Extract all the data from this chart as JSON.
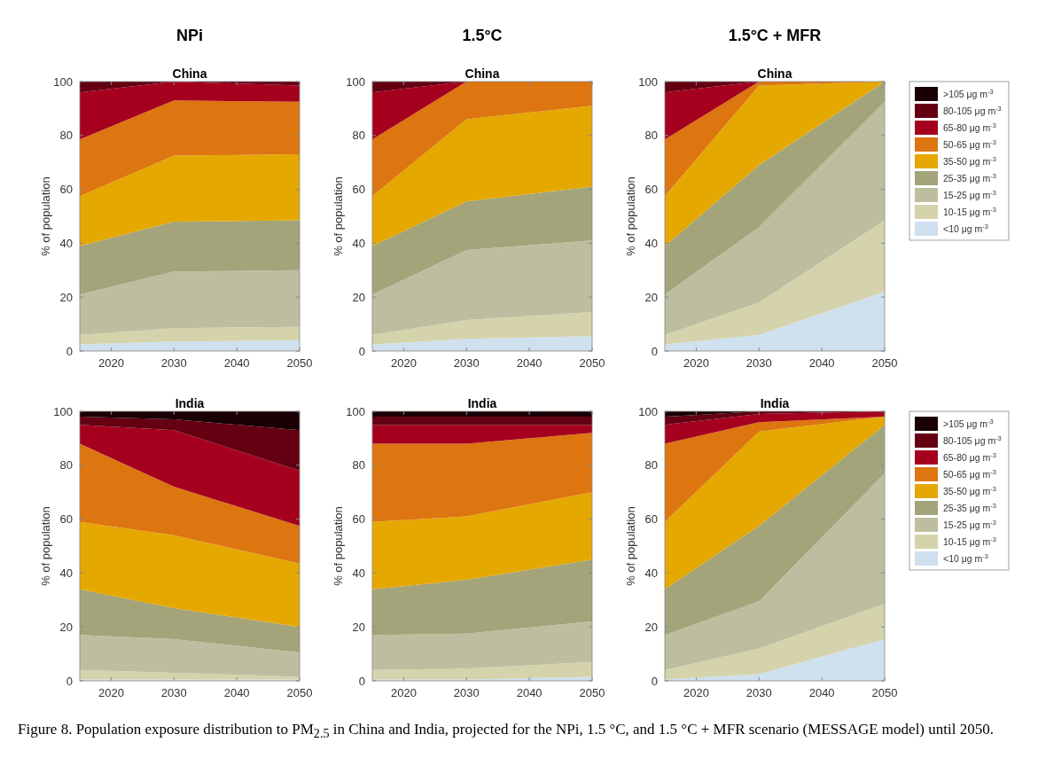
{
  "chart_data": [
    {
      "type": "area",
      "stacked": true,
      "title": "NPi",
      "subtitle": "China",
      "ylabel": "% of population",
      "x": [
        2015,
        2030,
        2050
      ],
      "xlim": [
        2015,
        2050
      ],
      "xticks": [
        2020,
        2030,
        2040,
        2050
      ],
      "ylim": [
        0,
        100
      ],
      "yticks": [
        0,
        20,
        40,
        60,
        80,
        100
      ],
      "legend": false,
      "series": [
        {
          "color": "#cfe0ef",
          "values": [
            2.5,
            3.5,
            4
          ]
        },
        {
          "color": "#d4d3ab",
          "values": [
            3.5,
            5,
            5
          ]
        },
        {
          "color": "#bdbea0",
          "values": [
            15,
            21,
            21
          ]
        },
        {
          "color": "#a3a47a",
          "values": [
            18,
            18.5,
            18.5
          ]
        },
        {
          "color": "#e5a800",
          "values": [
            18.5,
            24.5,
            24.5
          ]
        },
        {
          "color": "#dd7510",
          "values": [
            21,
            20.5,
            19.5
          ]
        },
        {
          "color": "#a5001e",
          "values": [
            17.5,
            7,
            6
          ]
        },
        {
          "color": "#640012",
          "values": [
            4,
            0,
            1.5
          ]
        }
      ]
    },
    {
      "type": "area",
      "stacked": true,
      "title": "1.5°C",
      "subtitle": "China",
      "ylabel": "% of population",
      "x": [
        2015,
        2030,
        2050
      ],
      "xlim": [
        2015,
        2050
      ],
      "xticks": [
        2020,
        2030,
        2040,
        2050
      ],
      "ylim": [
        0,
        100
      ],
      "yticks": [
        0,
        20,
        40,
        60,
        80,
        100
      ],
      "legend": false,
      "series": [
        {
          "color": "#cfe0ef",
          "values": [
            2.5,
            4.5,
            5.5
          ]
        },
        {
          "color": "#d4d3ab",
          "values": [
            3.5,
            7,
            9
          ]
        },
        {
          "color": "#bdbea0",
          "values": [
            15,
            26,
            26.5
          ]
        },
        {
          "color": "#a3a47a",
          "values": [
            18,
            18,
            20
          ]
        },
        {
          "color": "#e5a800",
          "values": [
            18.5,
            30.5,
            30
          ]
        },
        {
          "color": "#dd7510",
          "values": [
            21,
            14,
            9
          ]
        },
        {
          "color": "#a5001e",
          "values": [
            17.5,
            0,
            0
          ]
        },
        {
          "color": "#640012",
          "values": [
            4,
            0,
            0
          ]
        }
      ]
    },
    {
      "type": "area",
      "stacked": true,
      "title": "1.5°C + MFR",
      "subtitle": "China",
      "ylabel": "% of population",
      "x": [
        2015,
        2030,
        2050
      ],
      "xlim": [
        2015,
        2050
      ],
      "xticks": [
        2020,
        2030,
        2040,
        2050
      ],
      "ylim": [
        0,
        100
      ],
      "yticks": [
        0,
        20,
        40,
        60,
        80,
        100
      ],
      "legend": "right",
      "series": [
        {
          "name": "<10 μg m$^{-3}$",
          "color": "#cfe0ef",
          "values": [
            2.5,
            6,
            22
          ]
        },
        {
          "name": "10-15 μg m$^{-3}$",
          "color": "#d4d3ab",
          "values": [
            3.5,
            12,
            26.5
          ]
        },
        {
          "name": "15-25 μg m$^{-3}$",
          "color": "#bdbea0",
          "values": [
            15,
            28,
            44
          ]
        },
        {
          "name": "25-35 μg m$^{-3}$",
          "color": "#a3a47a",
          "values": [
            18,
            23,
            7.5
          ]
        },
        {
          "name": "35-50 μg m$^{-3}$",
          "color": "#e5a800",
          "values": [
            18.5,
            29.5,
            0
          ]
        },
        {
          "name": "50-65 μg m$^{-3}$",
          "color": "#dd7510",
          "values": [
            21,
            1.5,
            0
          ]
        },
        {
          "name": "65-80 μg m$^{-3}$",
          "color": "#a5001e",
          "values": [
            17.5,
            0,
            0
          ]
        },
        {
          "name": "80-105 μg m$^{-3}$",
          "color": "#640012",
          "values": [
            4,
            0,
            0
          ]
        },
        {
          "name": ">105 μg m$^{-3}$",
          "color": "#1a0004",
          "values": [
            null,
            null,
            null
          ]
        }
      ]
    },
    {
      "type": "area",
      "stacked": true,
      "subtitle": "India",
      "ylabel": "% of population",
      "x": [
        2015,
        2030,
        2050
      ],
      "xlim": [
        2015,
        2050
      ],
      "xticks": [
        2020,
        2030,
        2040,
        2050
      ],
      "ylim": [
        0,
        100
      ],
      "yticks": [
        0,
        20,
        40,
        60,
        80,
        100
      ],
      "legend": false,
      "series": [
        {
          "color": "#cfe0ef",
          "values": [
            0.5,
            0.5,
            0.5
          ]
        },
        {
          "color": "#d4d3ab",
          "values": [
            3.5,
            2.5,
            1
          ]
        },
        {
          "color": "#bdbea0",
          "values": [
            13,
            12.5,
            9
          ]
        },
        {
          "color": "#a3a47a",
          "values": [
            17,
            11.5,
            9.5
          ]
        },
        {
          "color": "#e5a800",
          "values": [
            25,
            27,
            23.5
          ]
        },
        {
          "color": "#dd7510",
          "values": [
            29,
            18,
            14
          ]
        },
        {
          "color": "#a5001e",
          "values": [
            7,
            21,
            20.5
          ]
        },
        {
          "color": "#640012",
          "values": [
            3,
            4,
            15
          ]
        },
        {
          "color": "#1a0004",
          "values": [
            2,
            3,
            7
          ]
        }
      ]
    },
    {
      "type": "area",
      "stacked": true,
      "subtitle": "India",
      "ylabel": "% of population",
      "x": [
        2015,
        2030,
        2050
      ],
      "xlim": [
        2015,
        2050
      ],
      "xticks": [
        2020,
        2030,
        2040,
        2050
      ],
      "ylim": [
        0,
        100
      ],
      "yticks": [
        0,
        20,
        40,
        60,
        80,
        100
      ],
      "legend": false,
      "series": [
        {
          "color": "#cfe0ef",
          "values": [
            0.5,
            0.5,
            1.5
          ]
        },
        {
          "color": "#d4d3ab",
          "values": [
            3.5,
            4,
            5.5
          ]
        },
        {
          "color": "#bdbea0",
          "values": [
            13,
            13,
            15
          ]
        },
        {
          "color": "#a3a47a",
          "values": [
            17,
            20,
            23
          ]
        },
        {
          "color": "#e5a800",
          "values": [
            25,
            23.5,
            25
          ]
        },
        {
          "color": "#dd7510",
          "values": [
            29,
            27,
            22
          ]
        },
        {
          "color": "#a5001e",
          "values": [
            7,
            7,
            3
          ]
        },
        {
          "color": "#640012",
          "values": [
            3,
            3,
            3
          ]
        },
        {
          "color": "#1a0004",
          "values": [
            2,
            2,
            2
          ]
        }
      ]
    },
    {
      "type": "area",
      "stacked": true,
      "subtitle": "India",
      "ylabel": "% of population",
      "x": [
        2015,
        2030,
        2050
      ],
      "xlim": [
        2015,
        2050
      ],
      "xticks": [
        2020,
        2030,
        2040,
        2050
      ],
      "ylim": [
        0,
        100
      ],
      "yticks": [
        0,
        20,
        40,
        60,
        80,
        100
      ],
      "legend": "right",
      "annotations": [
        "Figure 8. Population exposure distribution to PM$_{2.5}$ in China and India, projected for the NPi, 1.5 °C, and 1.5 °C + MFR scenario (MESSAGE model) until 2050."
      ],
      "series": [
        {
          "name": "<10 μg m$^{-3}$",
          "color": "#cfe0ef",
          "values": [
            0.5,
            2.5,
            15.5
          ]
        },
        {
          "name": "10-15 μg m$^{-3}$",
          "color": "#d4d3ab",
          "values": [
            3.5,
            9.5,
            13
          ]
        },
        {
          "name": "15-25 μg m$^{-3}$",
          "color": "#bdbea0",
          "values": [
            13,
            17.5,
            48.5
          ]
        },
        {
          "name": "25-35 μg m$^{-3}$",
          "color": "#a3a47a",
          "values": [
            17,
            28,
            18
          ]
        },
        {
          "name": "35-50 μg m$^{-3}$",
          "color": "#e5a800",
          "values": [
            25,
            35,
            3
          ]
        },
        {
          "name": "50-65 μg m$^{-3}$",
          "color": "#dd7510",
          "values": [
            29,
            3.5,
            0
          ]
        },
        {
          "name": "65-80 μg m$^{-3}$",
          "color": "#a5001e",
          "values": [
            7,
            3,
            2
          ]
        },
        {
          "name": "80-105 μg m$^{-3}$",
          "color": "#640012",
          "values": [
            3,
            1,
            0
          ]
        },
        {
          "name": ">105 μg m$^{-3}$",
          "color": "#1a0004",
          "values": [
            2,
            0,
            0
          ]
        }
      ]
    }
  ]
}
